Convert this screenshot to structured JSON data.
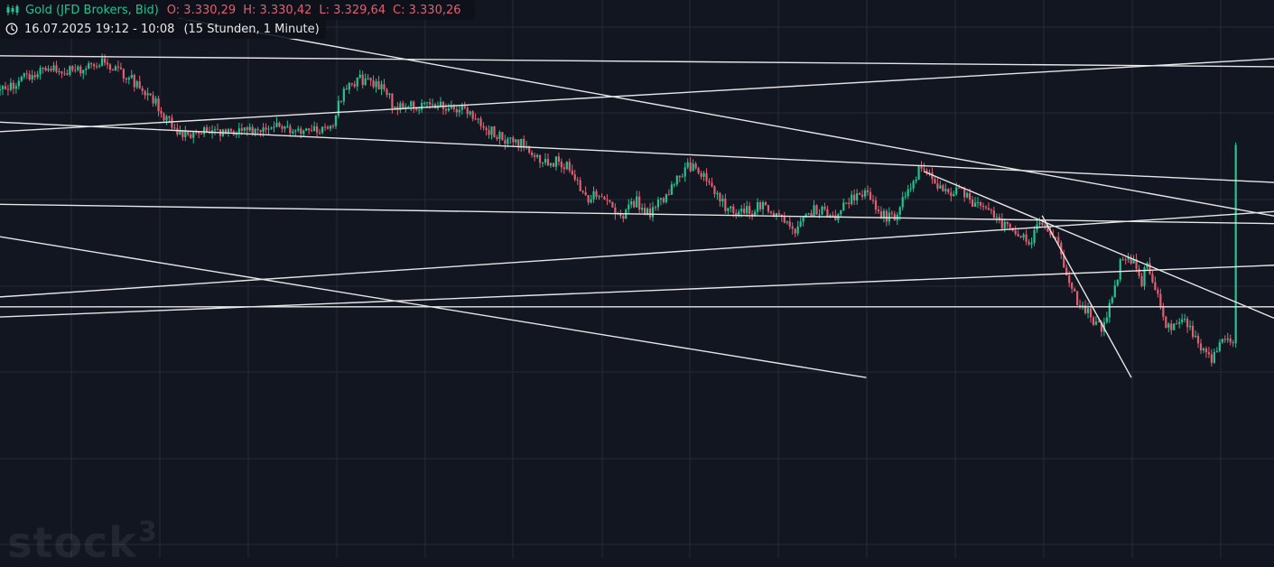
{
  "header": {
    "instrument": "Gold (JFD Brokers, Bid)",
    "open": "O: 3.330,29",
    "high": "H: 3.330,42",
    "low": "L: 3.329,64",
    "close": "C: 3.330,26",
    "range": "16.07.2025 19:12 - 10:08",
    "interval": "(15 Stunden, 1 Minute)"
  },
  "watermark": {
    "text": "stock",
    "superscript": "3"
  },
  "colors": {
    "background": "#121620",
    "grid": "#262a34",
    "up": "#22c491",
    "down": "#e06071",
    "trendline": "#e6e6e6"
  },
  "chart_data": {
    "type": "candlestick",
    "instrument": "Gold (JFD Brokers, Bid)",
    "interval": "1 Minute",
    "span": "15 Stunden",
    "last_candle": {
      "open": 3330.29,
      "high": 3330.42,
      "low": 3329.64,
      "close": 3330.26
    },
    "grid": true,
    "axis_labels_visible": false,
    "price_path": [
      [
        0,
        3345.2
      ],
      [
        0.02,
        3348.6
      ],
      [
        0.04,
        3352.0
      ],
      [
        0.06,
        3350.2
      ],
      [
        0.08,
        3353.2
      ],
      [
        0.09,
        3351.3
      ],
      [
        0.1,
        3349.2
      ],
      [
        0.12,
        3343.3
      ],
      [
        0.13,
        3337.1
      ],
      [
        0.14,
        3334.0
      ],
      [
        0.155,
        3333.4
      ],
      [
        0.175,
        3333.9
      ],
      [
        0.2,
        3334.4
      ],
      [
        0.215,
        3336.3
      ],
      [
        0.23,
        3333.4
      ],
      [
        0.245,
        3335.4
      ],
      [
        0.26,
        3333.9
      ],
      [
        0.27,
        3346.2
      ],
      [
        0.285,
        3348.3
      ],
      [
        0.3,
        3346.0
      ],
      [
        0.31,
        3340.8
      ],
      [
        0.33,
        3341.3
      ],
      [
        0.345,
        3341.3
      ],
      [
        0.365,
        3339.2
      ],
      [
        0.38,
        3335.0
      ],
      [
        0.395,
        3332.3
      ],
      [
        0.41,
        3330.2
      ],
      [
        0.425,
        3326.2
      ],
      [
        0.44,
        3325.6
      ],
      [
        0.45,
        3322.7
      ],
      [
        0.46,
        3314.7
      ],
      [
        0.47,
        3316.9
      ],
      [
        0.48,
        3312.6
      ],
      [
        0.49,
        3311.4
      ],
      [
        0.5,
        3314.7
      ],
      [
        0.51,
        3310.5
      ],
      [
        0.52,
        3315.4
      ],
      [
        0.53,
        3320.7
      ],
      [
        0.54,
        3324.9
      ],
      [
        0.55,
        3323.0
      ],
      [
        0.565,
        3314.9
      ],
      [
        0.575,
        3311.9
      ],
      [
        0.59,
        3312.1
      ],
      [
        0.6,
        3314.3
      ],
      [
        0.615,
        3310.0
      ],
      [
        0.625,
        3306.6
      ],
      [
        0.63,
        3310.2
      ],
      [
        0.64,
        3312.8
      ],
      [
        0.655,
        3310.2
      ],
      [
        0.665,
        3314.7
      ],
      [
        0.675,
        3317.3
      ],
      [
        0.685,
        3315.2
      ],
      [
        0.69,
        3312.1
      ],
      [
        0.7,
        3309.8
      ],
      [
        0.71,
        3315.2
      ],
      [
        0.72,
        3322.9
      ],
      [
        0.73,
        3322.2
      ],
      [
        0.74,
        3317.3
      ],
      [
        0.75,
        3318.2
      ],
      [
        0.76,
        3316.2
      ],
      [
        0.77,
        3312.0
      ],
      [
        0.78,
        3310.5
      ],
      [
        0.79,
        3308.2
      ],
      [
        0.8,
        3306.6
      ],
      [
        0.81,
        3303.5
      ],
      [
        0.815,
        3310.9
      ],
      [
        0.82,
        3308.7
      ],
      [
        0.83,
        3303.9
      ],
      [
        0.84,
        3289.9
      ],
      [
        0.85,
        3286.0
      ],
      [
        0.86,
        3281.7
      ],
      [
        0.865,
        3279.1
      ],
      [
        0.87,
        3284.0
      ],
      [
        0.875,
        3291.5
      ],
      [
        0.88,
        3298.5
      ],
      [
        0.885,
        3299.7
      ],
      [
        0.89,
        3298.0
      ],
      [
        0.895,
        3291.6
      ],
      [
        0.9,
        3297.3
      ],
      [
        0.91,
        3288.5
      ],
      [
        0.915,
        3281.7
      ],
      [
        0.92,
        3280.6
      ],
      [
        0.93,
        3282.2
      ],
      [
        0.935,
        3279.0
      ],
      [
        0.94,
        3276.7
      ],
      [
        0.945,
        3272.9
      ],
      [
        0.95,
        3271.6
      ],
      [
        0.955,
        3274.2
      ],
      [
        0.96,
        3276.5
      ],
      [
        0.97,
        3277.5
      ]
    ],
    "trendlines": [
      [
        [
          0,
          3354.7
        ],
        [
          1.0,
          3351.7
        ]
      ],
      [
        [
          0,
          3285.9
        ],
        [
          1.0,
          3285.9
        ]
      ],
      [
        [
          0,
          3333.9
        ],
        [
          1.0,
          3353.9
        ]
      ],
      [
        [
          0,
          3336.5
        ],
        [
          1.0,
          3320.0
        ]
      ],
      [
        [
          0,
          3314.0
        ],
        [
          1.0,
          3308.7
        ]
      ],
      [
        [
          0,
          3288.6
        ],
        [
          1.0,
          3312.0
        ]
      ],
      [
        [
          0,
          3283.1
        ],
        [
          1.0,
          3297.3
        ]
      ],
      [
        [
          0,
          3305.1
        ],
        [
          0.68,
          3266.5
        ]
      ],
      [
        [
          0.14,
          3365.0
        ],
        [
          1.0,
          3310.8
        ]
      ],
      [
        [
          0.725,
          3323.0
        ],
        [
          1.0,
          3282.8
        ]
      ],
      [
        [
          0.818,
          3310.9
        ],
        [
          0.888,
          3266.5
        ]
      ]
    ]
  }
}
